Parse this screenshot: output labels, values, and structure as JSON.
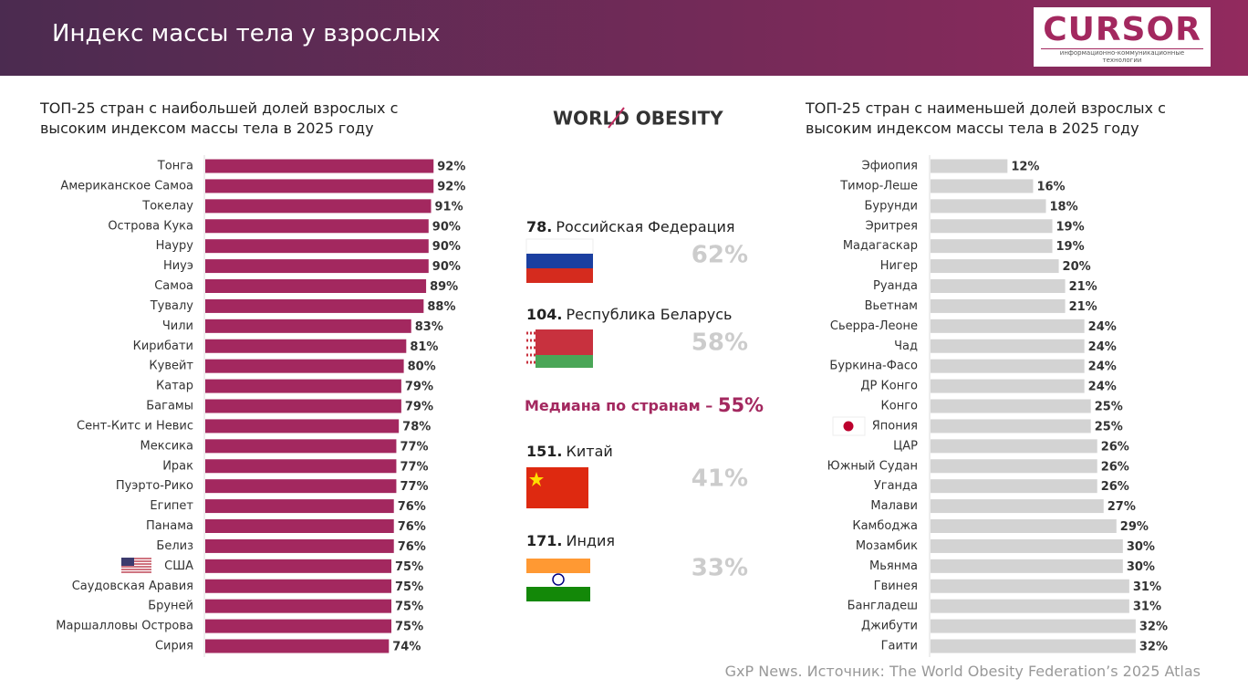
{
  "header": {
    "title": "Индекс массы тела у взрослых",
    "logo": "CURSOR",
    "logo_tagline": "информационно-коммуникационные технологии"
  },
  "chart_data": [
    {
      "type": "bar",
      "orientation": "horizontal",
      "title": "ТОП-25 стран с наибольшей долей взрослых с высоким индексом массы тела в 2025 году",
      "color": "#a3285f",
      "xlim": [
        0,
        100
      ],
      "categories": [
        "Тонга",
        "Американское Самоа",
        "Токелау",
        "Острова Кука",
        "Науру",
        "Ниуэ",
        "Самоа",
        "Тувалу",
        "Чили",
        "Кирибати",
        "Кувейт",
        "Катар",
        "Багамы",
        "Сент-Китс и Невис",
        "Мексика",
        "Ирак",
        "Пуэрто-Рико",
        "Египет",
        "Панама",
        "Белиз",
        "США",
        "Саудовская Аравия",
        "Бруней",
        "Маршалловы Острова",
        "Сирия"
      ],
      "values": [
        92,
        92,
        91,
        90,
        90,
        90,
        89,
        88,
        83,
        81,
        80,
        79,
        79,
        78,
        77,
        77,
        77,
        76,
        76,
        76,
        75,
        75,
        75,
        75,
        74
      ],
      "value_labels": [
        "92%",
        "92%",
        "91%",
        "90%",
        "90%",
        "90%",
        "89%",
        "88%",
        "83%",
        "81%",
        "80%",
        "79%",
        "79%",
        "78%",
        "77%",
        "77%",
        "77%",
        "76%",
        "76%",
        "76%",
        "75%",
        "75%",
        "75%",
        "75%",
        "74%"
      ]
    },
    {
      "type": "bar",
      "orientation": "horizontal",
      "title": "ТОП-25 стран с наименьшей долей взрослых с высоким индексом массы тела в 2025 году",
      "color": "#d3d3d3",
      "xlim": [
        0,
        36
      ],
      "categories": [
        "Эфиопия",
        "Тимор-Леше",
        "Бурунди",
        "Эритрея",
        "Мадагаскар",
        "Нигер",
        "Руанда",
        "Вьетнам",
        "Сьерра-Леоне",
        "Чад",
        "Буркина-Фасо",
        "ДР Конго",
        "Конго",
        "Япония",
        "ЦАР",
        "Южный Судан",
        "Уганда",
        "Малави",
        "Камбоджа",
        "Мозамбик",
        "Мьянма",
        "Гвинея",
        "Бангладеш",
        "Джибути",
        "Гаити"
      ],
      "values": [
        12,
        16,
        18,
        19,
        19,
        20,
        21,
        21,
        24,
        24,
        24,
        24,
        25,
        25,
        26,
        26,
        26,
        27,
        29,
        30,
        30,
        31,
        31,
        32,
        32
      ],
      "value_labels": [
        "12%",
        "16%",
        "18%",
        "19%",
        "19%",
        "20%",
        "21%",
        "21%",
        "24%",
        "24%",
        "24%",
        "24%",
        "25%",
        "25%",
        "26%",
        "26%",
        "26%",
        "27%",
        "29%",
        "30%",
        "30%",
        "31%",
        "31%",
        "32%",
        "32%"
      ]
    }
  ],
  "middle": {
    "logo": "WORLD OBESITY",
    "countries": [
      {
        "rank": "78.",
        "name": "Российская Федерация",
        "share": "62%"
      },
      {
        "rank": "104.",
        "name": "Республика Беларусь",
        "share": "58%"
      },
      {
        "rank": "151.",
        "name": "Китай",
        "share": "41%"
      },
      {
        "rank": "171.",
        "name": "Индия",
        "share": "33%"
      }
    ],
    "median_label": "Медиана по странам – ",
    "median_value": "55%"
  },
  "source": "GxP News. Источник: The World Obesity Federation’s 2025 Atlas"
}
